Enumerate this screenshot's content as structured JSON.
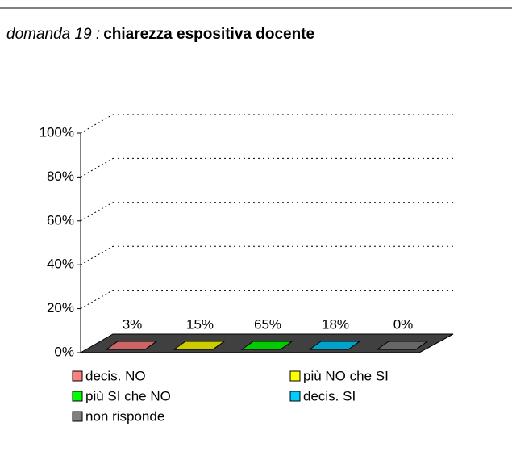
{
  "chart_data": {
    "type": "bar3d",
    "question": "domanda 19 :",
    "title": "chiarezza espositiva docente",
    "categories": [
      "decis. NO",
      "più NO che SI",
      "più SI che NO",
      "decis. SI",
      "non risponde"
    ],
    "values": [
      3,
      15,
      65,
      18,
      0
    ],
    "value_labels": [
      "3%",
      "15%",
      "65%",
      "18%",
      "0%"
    ],
    "colors": [
      "#ff8080",
      "#ffff00",
      "#00ff00",
      "#00ccff",
      "#808080"
    ],
    "ylim": [
      0,
      100
    ],
    "yticks": [
      {
        "value": 0,
        "label": "0%"
      },
      {
        "value": 20,
        "label": "20%"
      },
      {
        "value": 40,
        "label": "40%"
      },
      {
        "value": 60,
        "label": "60%"
      },
      {
        "value": 80,
        "label": "80%"
      },
      {
        "value": 100,
        "label": "100%"
      }
    ],
    "grid": true
  }
}
